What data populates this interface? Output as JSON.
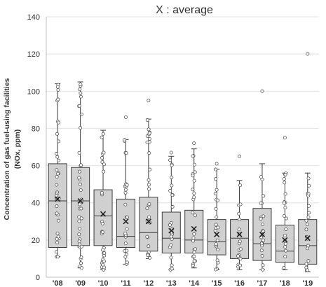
{
  "chart_data": {
    "type": "box",
    "title": "X : average",
    "ylabel_line1": "Concentration of gas fuel-using facilities",
    "ylabel_line2": "(NOx, ppm)",
    "ylim": [
      0,
      140
    ],
    "yticks": [
      0,
      20,
      40,
      60,
      80,
      100,
      120,
      140
    ],
    "grid": true,
    "categories": [
      "'08",
      "'09",
      "'10",
      "'11",
      "'12",
      "'13",
      "'14",
      "'15",
      "'16",
      "'17",
      "'18",
      "'19"
    ],
    "boxes": [
      {
        "q1": 16,
        "median": 41,
        "q3": 61,
        "mean": 42,
        "whisker_low": 11,
        "whisker_high": 104,
        "outliers": []
      },
      {
        "q1": 17,
        "median": 41,
        "q3": 59,
        "mean": 41,
        "whisker_low": 5,
        "whisker_high": 105,
        "outliers": []
      },
      {
        "q1": 17,
        "median": 33,
        "q3": 47,
        "mean": 34,
        "whisker_low": 4,
        "whisker_high": 79,
        "outliers": []
      },
      {
        "q1": 16,
        "median": 22,
        "q3": 42,
        "mean": 30,
        "whisker_low": 7,
        "whisker_high": 74,
        "outliers": [
          86
        ]
      },
      {
        "q1": 14,
        "median": 24,
        "q3": 43,
        "mean": 30,
        "whisker_low": 10,
        "whisker_high": 85,
        "outliers": [
          95
        ]
      },
      {
        "q1": 13,
        "median": 21,
        "q3": 35,
        "mean": 25,
        "whisker_low": 4,
        "whisker_high": 65,
        "outliers": [
          67
        ]
      },
      {
        "q1": 13,
        "median": 20,
        "q3": 36,
        "mean": 26,
        "whisker_low": 5,
        "whisker_high": 69,
        "outliers": [
          72
        ]
      },
      {
        "q1": 12,
        "median": 19,
        "q3": 31,
        "mean": 23,
        "whisker_low": 4,
        "whisker_high": 58,
        "outliers": [
          61
        ]
      },
      {
        "q1": 10,
        "median": 21,
        "q3": 31,
        "mean": 23,
        "whisker_low": 4,
        "whisker_high": 52,
        "outliers": [
          65
        ]
      },
      {
        "q1": 9,
        "median": 18,
        "q3": 37,
        "mean": 23,
        "whisker_low": 4,
        "whisker_high": 61,
        "outliers": [
          100
        ]
      },
      {
        "q1": 8,
        "median": 14,
        "q3": 28,
        "mean": 20,
        "whisker_low": 4,
        "whisker_high": 56,
        "outliers": [
          75
        ]
      },
      {
        "q1": 7,
        "median": 17,
        "q3": 31,
        "mean": 21,
        "whisker_low": 3,
        "whisker_high": 56,
        "outliers": [
          120
        ]
      }
    ],
    "colors": {
      "box_fill": "#d0d0d0",
      "box_stroke": "#3c3c3c",
      "whisker": "#3c3c3c",
      "points": "#555555",
      "grid": "#e2e2e2",
      "axis": "#bfbfbf",
      "text": "#333333"
    }
  }
}
